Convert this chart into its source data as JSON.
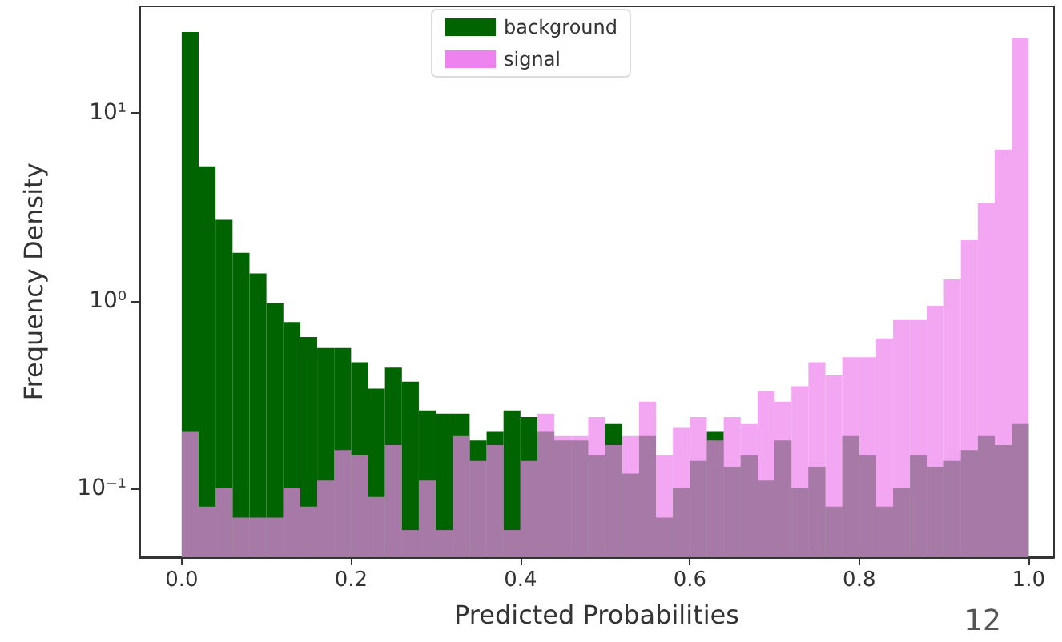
{
  "chart_data": {
    "type": "histogram",
    "xlabel": "Predicted Probabilities",
    "ylabel": "Frequency Density",
    "bins": [
      0,
      0.02,
      0.04,
      0.06,
      0.08,
      0.1,
      0.12,
      0.14,
      0.16,
      0.18,
      0.2,
      0.22,
      0.24,
      0.26,
      0.28,
      0.3,
      0.32,
      0.34,
      0.36,
      0.38,
      0.4,
      0.42,
      0.44,
      0.46,
      0.48,
      0.5,
      0.52,
      0.54,
      0.56,
      0.58,
      0.6,
      0.62,
      0.64,
      0.66,
      0.68,
      0.7,
      0.72,
      0.74,
      0.76,
      0.78,
      0.8,
      0.82,
      0.84,
      0.86,
      0.88,
      0.9,
      0.92,
      0.94,
      0.96,
      0.98,
      1
    ],
    "series": [
      {
        "name": "background",
        "color": "#006400",
        "values": [
          27,
          5.2,
          2.7,
          1.8,
          1.4,
          0.97,
          0.77,
          0.64,
          0.56,
          0.56,
          0.47,
          0.34,
          0.44,
          0.37,
          0.26,
          0.25,
          0.25,
          0.18,
          0.2,
          0.26,
          0.24,
          0.2,
          0.18,
          0.18,
          0.15,
          0.22,
          0.12,
          0.19,
          0.07,
          0.1,
          0.14,
          0.2,
          0.13,
          0.15,
          0.11,
          0.18,
          0.1,
          0.13,
          0.08,
          0.19,
          0.15,
          0.08,
          0.1,
          0.15,
          0.13,
          0.14,
          0.16,
          0.19,
          0.17,
          0.22
        ]
      },
      {
        "name": "signal",
        "color": "#ee82ee",
        "values": [
          0.2,
          0.08,
          0.1,
          0.07,
          0.07,
          0.07,
          0.1,
          0.08,
          0.11,
          0.16,
          0.15,
          0.09,
          0.17,
          0.06,
          0.11,
          0.06,
          0.19,
          0.14,
          0.17,
          0.06,
          0.14,
          0.25,
          0.19,
          0.19,
          0.24,
          0.17,
          0.19,
          0.29,
          0.15,
          0.21,
          0.24,
          0.18,
          0.24,
          0.22,
          0.33,
          0.29,
          0.35,
          0.47,
          0.4,
          0.5,
          0.5,
          0.63,
          0.79,
          0.79,
          0.94,
          1.3,
          2.1,
          3.3,
          6.4,
          25
        ]
      }
    ],
    "xlim": [
      -0.05,
      1.03
    ],
    "ylim": [
      0.043,
      37
    ],
    "log": "y",
    "xticks": [
      {
        "value": 0,
        "label": "0.0"
      },
      0.2,
      0.4,
      0.6,
      0.8,
      {
        "value": 1,
        "label": "1.0"
      }
    ],
    "yticks": [
      {
        "value": 0.1,
        "label": "10⁻¹"
      },
      {
        "value": 1,
        "label": "10⁰"
      },
      {
        "value": 10,
        "label": "10¹"
      }
    ],
    "legend": "top",
    "grid": false,
    "annotations": [
      "12"
    ]
  }
}
